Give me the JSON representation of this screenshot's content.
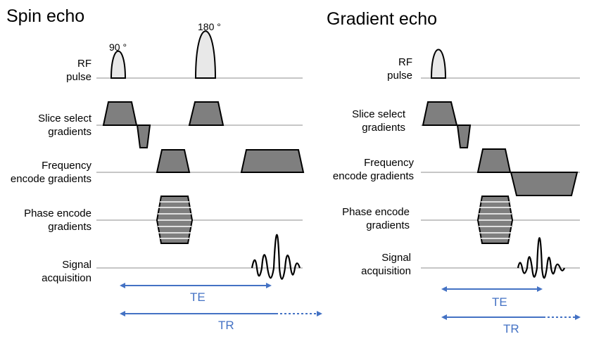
{
  "spin_echo": {
    "title": "Spin echo",
    "flip_angle_1": "90 °",
    "flip_angle_2": "180 °",
    "rows": {
      "rf": [
        "RF",
        "pulse"
      ],
      "slice": [
        "Slice select",
        "gradients"
      ],
      "frequency": [
        "Frequency",
        "encode gradients"
      ],
      "phase": [
        "Phase encode",
        "gradients"
      ],
      "signal": [
        "Signal",
        "acquisition"
      ]
    },
    "te_label": "TE",
    "tr_label": "TR"
  },
  "gradient_echo": {
    "title": "Gradient echo",
    "rows": {
      "rf": [
        "RF",
        "pulse"
      ],
      "slice": [
        "Slice select",
        "gradients"
      ],
      "frequency": [
        "Frequency",
        "encode gradients"
      ],
      "phase": [
        "Phase encode",
        "gradients"
      ],
      "signal": [
        "Signal",
        "acquisition"
      ]
    },
    "te_label": "TE",
    "tr_label": "TR"
  },
  "colors": {
    "gradient_fill": "#7f7f7f",
    "rf_fill": "#e8e8e8",
    "outline": "#000000",
    "baseline": "#8c8c8c",
    "timing_arrow": "#4472c4"
  }
}
